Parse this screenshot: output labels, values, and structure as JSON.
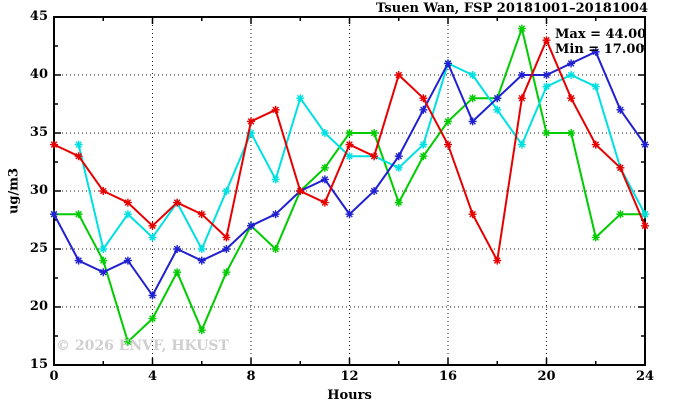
{
  "title": "Tsuen Wan, FSP 20181001–20181004",
  "annotation": {
    "max_label": "Max = 44.00",
    "min_label": "Min = 17.00"
  },
  "watermark": "© 2026 ENVF, HKUST",
  "chart_data": {
    "type": "line",
    "title": "Tsuen Wan, FSP 20181001–20181004",
    "xlabel": "Hours",
    "ylabel": "ug/m3",
    "xlim": [
      0,
      24
    ],
    "ylim": [
      15,
      45
    ],
    "x_major_ticks": [
      0,
      4,
      8,
      12,
      16,
      20,
      24
    ],
    "x_tick_labels": [
      "0",
      "4",
      "8",
      "12",
      "16",
      "20",
      "24"
    ],
    "x_minor_step": 2,
    "y_major_ticks": [
      15,
      20,
      25,
      30,
      35,
      40,
      45
    ],
    "y_tick_labels": [
      "15",
      "20",
      "25",
      "30",
      "35",
      "40",
      "45"
    ],
    "y_minor_step": 2.5,
    "grid": {
      "x_at": [
        4,
        8,
        12,
        16,
        20
      ],
      "y_at": [
        20,
        25,
        30,
        35,
        40
      ],
      "style": "dotted"
    },
    "legend": "none",
    "x": [
      0,
      1,
      2,
      3,
      4,
      5,
      6,
      7,
      8,
      9,
      10,
      11,
      12,
      13,
      14,
      15,
      16,
      17,
      18,
      19,
      20,
      21,
      22,
      23,
      24
    ],
    "series": [
      {
        "name": "series-green",
        "color": "#00cc00",
        "values": [
          28,
          28,
          24,
          17,
          19,
          23,
          18,
          23,
          27,
          25,
          30,
          32,
          35,
          35,
          29,
          33,
          36,
          38,
          38,
          44,
          35,
          35,
          26,
          28,
          28
        ]
      },
      {
        "name": "series-cyan",
        "color": "#00e0e0",
        "values": [
          null,
          34,
          25,
          28,
          26,
          29,
          25,
          30,
          35,
          31,
          38,
          35,
          33,
          33,
          32,
          34,
          41,
          40,
          37,
          34,
          39,
          40,
          39,
          32,
          28
        ]
      },
      {
        "name": "series-blue",
        "color": "#2020d0",
        "values": [
          28,
          24,
          23,
          24,
          21,
          25,
          24,
          25,
          27,
          28,
          30,
          31,
          28,
          30,
          33,
          37,
          41,
          36,
          38,
          40,
          40,
          41,
          42,
          37,
          34
        ]
      },
      {
        "name": "series-red",
        "color": "#e60000",
        "values": [
          34,
          33,
          30,
          29,
          27,
          29,
          28,
          26,
          36,
          37,
          30,
          29,
          34,
          33,
          40,
          38,
          34,
          28,
          24,
          38,
          43,
          38,
          34,
          32,
          27
        ]
      }
    ]
  },
  "colors": {
    "border": "#000000",
    "grid": "#1a1a1a",
    "watermark": "#cfcfcf"
  }
}
